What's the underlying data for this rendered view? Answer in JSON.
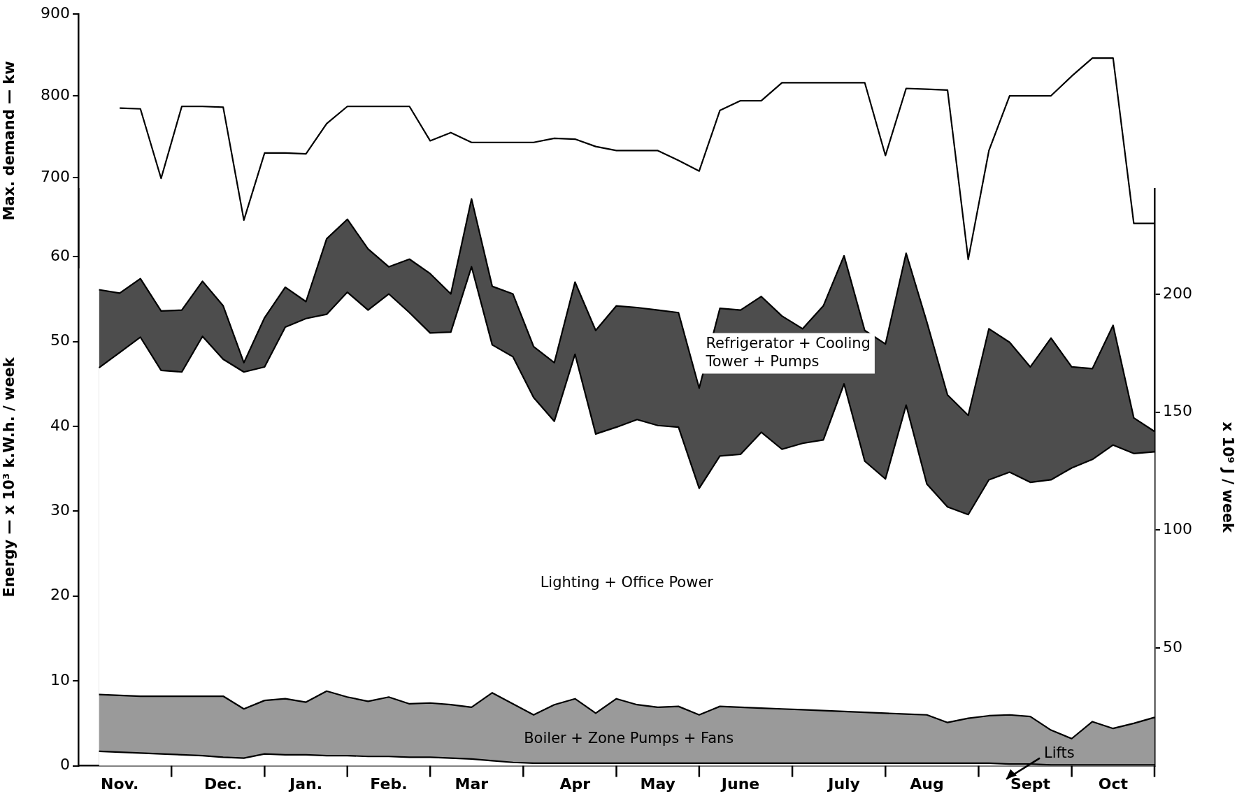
{
  "chart_data": [
    {
      "type": "line",
      "ylabel": "Max. demand — kw",
      "categories": [
        null,
        null,
        null,
        null,
        null,
        null,
        null,
        null,
        null,
        null,
        null,
        null,
        null,
        null,
        null,
        null,
        null,
        null,
        null,
        null,
        null,
        null,
        null,
        null,
        null,
        null,
        null,
        null,
        null,
        null,
        null,
        null,
        null,
        null,
        null,
        null,
        null,
        null,
        null,
        null,
        null,
        null,
        null,
        null,
        null,
        null,
        null,
        null,
        null,
        null,
        null,
        null,
        null
      ],
      "ylim": [
        590,
        900
      ],
      "yticks": [
        700,
        800,
        900
      ],
      "grid": false,
      "legend": false,
      "tick_labels": "y",
      "marker": "none",
      "series": [
        {
          "color": "#000000",
          "values": [
            null,
            null,
            785,
            784,
            699,
            787,
            787,
            786,
            648,
            730,
            730,
            729,
            766,
            787,
            787,
            787,
            787,
            745,
            755,
            743,
            743,
            743,
            743,
            748,
            747,
            738,
            733,
            733,
            733,
            721,
            708,
            782,
            794,
            794,
            816,
            816,
            816,
            816,
            816,
            727,
            809,
            808,
            807,
            600,
            733,
            800,
            800,
            800,
            824,
            846,
            846,
            644,
            644
          ]
        }
      ]
    },
    {
      "type": "area",
      "ylabel": "Energy — x 10³ k.W.h. / week",
      "y2label": "x 10⁹ J / week",
      "categories": [
        null,
        null,
        "Nov.",
        null,
        null,
        null,
        null,
        "Dec.",
        null,
        null,
        null,
        "Jan.",
        null,
        null,
        null,
        "Feb.",
        null,
        null,
        null,
        "Mar",
        null,
        null,
        null,
        null,
        "Apr",
        null,
        null,
        null,
        "May",
        null,
        null,
        null,
        "June",
        null,
        null,
        null,
        null,
        "July",
        null,
        null,
        null,
        "Aug",
        null,
        null,
        null,
        null,
        "Sept",
        null,
        null,
        null,
        "Oct",
        null,
        null
      ],
      "ylim": [
        0,
        68
      ],
      "yticks": [
        0,
        10,
        20,
        30,
        40,
        50,
        60
      ],
      "y2lim": [
        0,
        244.8
      ],
      "y2ticks": [
        50,
        100,
        150,
        200
      ],
      "grid": false,
      "legend": false,
      "marker": "none",
      "series": [
        {
          "name": "Lifts",
          "color": "#ffffff",
          "values": [
            null,
            1.7,
            1.6,
            1.5,
            1.4,
            1.3,
            1.2,
            1.0,
            0.9,
            1.4,
            1.3,
            1.3,
            1.2,
            1.2,
            1.1,
            1.1,
            1.0,
            1.0,
            0.9,
            0.8,
            0.6,
            0.4,
            0.3,
            0.3,
            0.3,
            0.3,
            0.3,
            0.3,
            0.3,
            0.3,
            0.3,
            0.3,
            0.3,
            0.3,
            0.3,
            0.3,
            0.3,
            0.3,
            0.3,
            0.3,
            0.3,
            0.3,
            0.3,
            0.3,
            0.3,
            0.2,
            0.2,
            0.1,
            0.1,
            0.1,
            0.1,
            0.1,
            0.1
          ]
        },
        {
          "name": "Boiler + Zone Pumps + Fans",
          "color": "#9a9a9a",
          "values": [
            null,
            8.4,
            8.3,
            8.2,
            8.2,
            8.2,
            8.2,
            8.2,
            6.7,
            7.7,
            7.9,
            7.5,
            8.8,
            8.1,
            7.6,
            8.1,
            7.3,
            7.4,
            7.2,
            6.9,
            8.6,
            7.3,
            6.0,
            7.2,
            7.9,
            6.2,
            7.9,
            7.2,
            6.9,
            7.0,
            6.0,
            7.0,
            6.9,
            6.8,
            6.7,
            6.6,
            6.5,
            6.4,
            6.3,
            6.2,
            6.1,
            6.0,
            5.1,
            5.6,
            5.9,
            6.0,
            5.8,
            4.2,
            3.2,
            5.2,
            4.4,
            5.0,
            5.7
          ]
        },
        {
          "name": "Lighting + Office Power",
          "color": "#ffffff",
          "values": [
            null,
            46.9,
            48.7,
            50.5,
            46.6,
            46.4,
            50.6,
            47.9,
            46.4,
            47.0,
            51.7,
            52.7,
            53.2,
            55.8,
            53.7,
            55.6,
            53.4,
            51.0,
            51.1,
            58.8,
            49.6,
            48.2,
            43.4,
            40.6,
            48.5,
            39.1,
            39.9,
            40.8,
            40.1,
            39.9,
            32.7,
            36.5,
            36.7,
            39.3,
            37.3,
            38.0,
            38.4,
            45.0,
            35.9,
            33.8,
            42.5,
            33.2,
            30.5,
            29.6,
            33.7,
            34.6,
            33.4,
            33.7,
            35.1,
            36.1,
            37.8,
            36.8,
            37.0
          ]
        },
        {
          "name": "Refrigerator + Cooling Tower + Pumps",
          "color": "#4d4d4d",
          "values": [
            null,
            56.1,
            55.7,
            57.4,
            53.6,
            53.7,
            57.1,
            54.2,
            47.5,
            52.8,
            56.4,
            54.7,
            62.1,
            64.4,
            60.9,
            58.8,
            59.7,
            58.0,
            55.6,
            66.8,
            56.5,
            55.6,
            49.4,
            47.5,
            57.0,
            51.3,
            54.2,
            54.0,
            53.7,
            53.4,
            44.5,
            53.9,
            53.7,
            55.3,
            53.0,
            51.5,
            54.2,
            60.1,
            51.3,
            49.7,
            60.4,
            52.3,
            43.7,
            41.3,
            51.5,
            49.9,
            47.0,
            50.4,
            47.0,
            46.8,
            51.9,
            41.0,
            39.4
          ]
        }
      ]
    }
  ]
}
